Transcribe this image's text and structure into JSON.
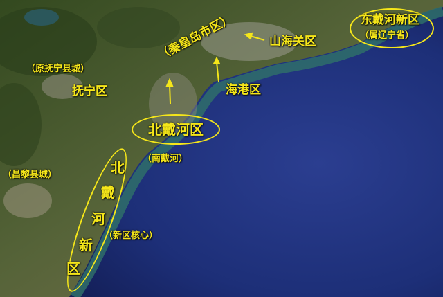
{
  "labels": {
    "dongdaihe": "东戴河新区",
    "liaoning": "（属辽宁省）",
    "qinhuangdao": "（秦皇岛市区）",
    "shanhaiguan": "山海关区",
    "haigang": "海港区",
    "yuanfuning": "（原抚宁县城）",
    "funing": "抚宁区",
    "beidaihe": "北戴河区",
    "nandaihe": "（南戴河）",
    "changli": "（昌黎县城）",
    "xinqu_hexin": "（新区核心）",
    "new_area_chars": [
      "北",
      "戴",
      "河",
      "新",
      "区"
    ]
  },
  "colors": {
    "label": "#f5e61a",
    "sea_deep": "#152565",
    "sea_mid": "#2a3f8f",
    "coast_water": "#2f6a6a",
    "land_green": "#3f5a2a",
    "land_brown": "#8a7a55"
  }
}
